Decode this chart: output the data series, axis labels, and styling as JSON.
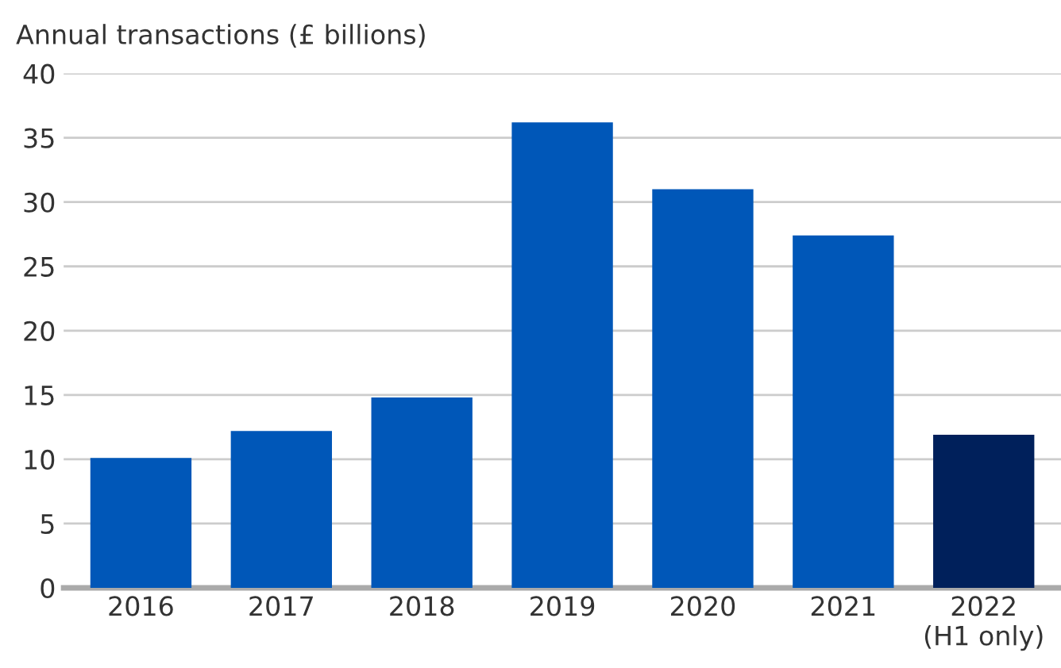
{
  "chart_data": {
    "type": "bar",
    "ylabel": "Annual transactions (£ billions)",
    "categories": [
      "2016",
      "2017",
      "2018",
      "2019",
      "2020",
      "2021",
      "2022\n(H1 only)"
    ],
    "values": [
      10.1,
      12.2,
      14.8,
      36.2,
      31.0,
      27.4,
      11.9
    ],
    "colors": [
      "#0057b8",
      "#0057b8",
      "#0057b8",
      "#0057b8",
      "#0057b8",
      "#0057b8",
      "#00205b"
    ],
    "ylim": [
      0,
      40
    ],
    "yticks": [
      0,
      5,
      10,
      15,
      20,
      25,
      30,
      35,
      40
    ],
    "grid": "y"
  }
}
